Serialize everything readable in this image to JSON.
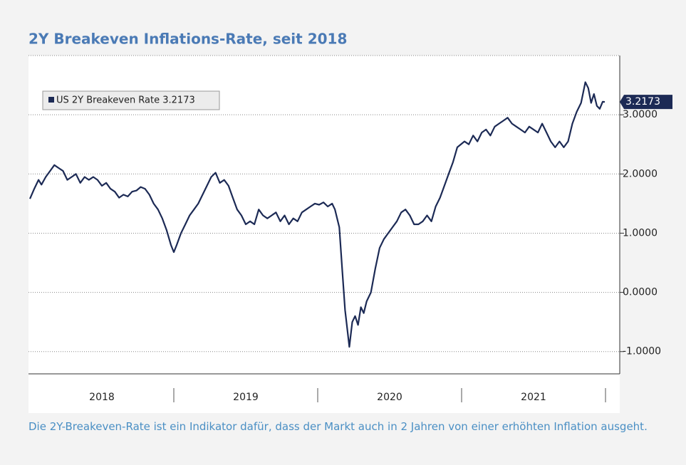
{
  "chart_data": {
    "type": "line",
    "title": "2Y Breakeven Inflations-Rate, seit 2018",
    "caption": "Die 2Y-Breakeven-Rate ist ein Indikator dafür, dass der Markt auch in 2 Jahren von einer erhöhten Inflation ausgeht.",
    "x": [
      2018.0,
      2018.03,
      2018.06,
      2018.08,
      2018.11,
      2018.14,
      2018.17,
      2018.2,
      2018.23,
      2018.26,
      2018.29,
      2018.32,
      2018.35,
      2018.38,
      2018.41,
      2018.44,
      2018.47,
      2018.5,
      2018.53,
      2018.56,
      2018.59,
      2018.62,
      2018.65,
      2018.68,
      2018.71,
      2018.74,
      2018.77,
      2018.8,
      2018.83,
      2018.86,
      2018.89,
      2018.92,
      2018.95,
      2018.98,
      2019.0,
      2019.02,
      2019.05,
      2019.08,
      2019.11,
      2019.14,
      2019.17,
      2019.2,
      2019.23,
      2019.26,
      2019.29,
      2019.32,
      2019.35,
      2019.38,
      2019.41,
      2019.44,
      2019.47,
      2019.5,
      2019.53,
      2019.56,
      2019.59,
      2019.62,
      2019.65,
      2019.68,
      2019.71,
      2019.74,
      2019.77,
      2019.8,
      2019.83,
      2019.86,
      2019.89,
      2019.92,
      2019.95,
      2019.98,
      2020.01,
      2020.04,
      2020.07,
      2020.1,
      2020.12,
      2020.15,
      2020.17,
      2020.19,
      2020.22,
      2020.24,
      2020.26,
      2020.28,
      2020.3,
      2020.32,
      2020.34,
      2020.37,
      2020.4,
      2020.43,
      2020.46,
      2020.49,
      2020.52,
      2020.55,
      2020.58,
      2020.61,
      2020.64,
      2020.67,
      2020.7,
      2020.73,
      2020.76,
      2020.79,
      2020.82,
      2020.85,
      2020.88,
      2020.91,
      2020.94,
      2020.97,
      2021.02,
      2021.05,
      2021.08,
      2021.11,
      2021.14,
      2021.17,
      2021.2,
      2021.23,
      2021.26,
      2021.29,
      2021.32,
      2021.35,
      2021.38,
      2021.41,
      2021.44,
      2021.47,
      2021.5,
      2021.53,
      2021.56,
      2021.59,
      2021.62,
      2021.65,
      2021.68,
      2021.71,
      2021.74,
      2021.77,
      2021.8,
      2021.83,
      2021.86,
      2021.88,
      2021.9,
      2021.92,
      2021.94,
      2021.96,
      2021.98,
      2021.995
    ],
    "series": [
      {
        "name": "US 2Y Breakeven Rate 3.2173",
        "color": "#1c2a55",
        "values": [
          1.58,
          1.75,
          1.9,
          1.82,
          1.95,
          2.05,
          2.15,
          2.1,
          2.05,
          1.9,
          1.95,
          2.0,
          1.85,
          1.95,
          1.9,
          1.95,
          1.9,
          1.8,
          1.85,
          1.75,
          1.7,
          1.6,
          1.65,
          1.62,
          1.7,
          1.72,
          1.78,
          1.75,
          1.65,
          1.5,
          1.4,
          1.25,
          1.05,
          0.8,
          0.68,
          0.8,
          1.0,
          1.15,
          1.3,
          1.4,
          1.5,
          1.65,
          1.8,
          1.95,
          2.02,
          1.85,
          1.9,
          1.8,
          1.6,
          1.4,
          1.3,
          1.15,
          1.2,
          1.15,
          1.4,
          1.3,
          1.25,
          1.3,
          1.35,
          1.2,
          1.3,
          1.15,
          1.25,
          1.2,
          1.35,
          1.4,
          1.45,
          1.5,
          1.48,
          1.52,
          1.45,
          1.5,
          1.4,
          1.1,
          0.4,
          -0.3,
          -0.92,
          -0.5,
          -0.4,
          -0.55,
          -0.25,
          -0.35,
          -0.15,
          0.0,
          0.4,
          0.75,
          0.9,
          1.0,
          1.1,
          1.2,
          1.35,
          1.4,
          1.3,
          1.15,
          1.15,
          1.2,
          1.3,
          1.2,
          1.45,
          1.6,
          1.8,
          2.0,
          2.2,
          2.45,
          2.55,
          2.5,
          2.65,
          2.55,
          2.7,
          2.75,
          2.65,
          2.8,
          2.85,
          2.9,
          2.95,
          2.85,
          2.8,
          2.75,
          2.7,
          2.8,
          2.75,
          2.7,
          2.85,
          2.7,
          2.55,
          2.45,
          2.55,
          2.45,
          2.55,
          2.85,
          3.05,
          3.2,
          3.55,
          3.45,
          3.2,
          3.35,
          3.15,
          3.1,
          3.22,
          3.2173
        ]
      }
    ],
    "xlim": [
      2018,
      2022
    ],
    "xticks": [
      {
        "value": 2018.5,
        "label": "2018"
      },
      {
        "value": 2019.5,
        "label": "2019"
      },
      {
        "value": 2020.5,
        "label": "2020"
      },
      {
        "value": 2021.5,
        "label": "2021"
      }
    ],
    "ylim": [
      -1.4,
      4
    ],
    "yticks": [
      {
        "value": -1,
        "label": "-1.0000"
      },
      {
        "value": 0,
        "label": "0.0000"
      },
      {
        "value": 1,
        "label": "1.0000"
      },
      {
        "value": 2,
        "label": "2.0000"
      },
      {
        "value": 3,
        "label": "3.0000"
      }
    ],
    "grid": true
  }
}
